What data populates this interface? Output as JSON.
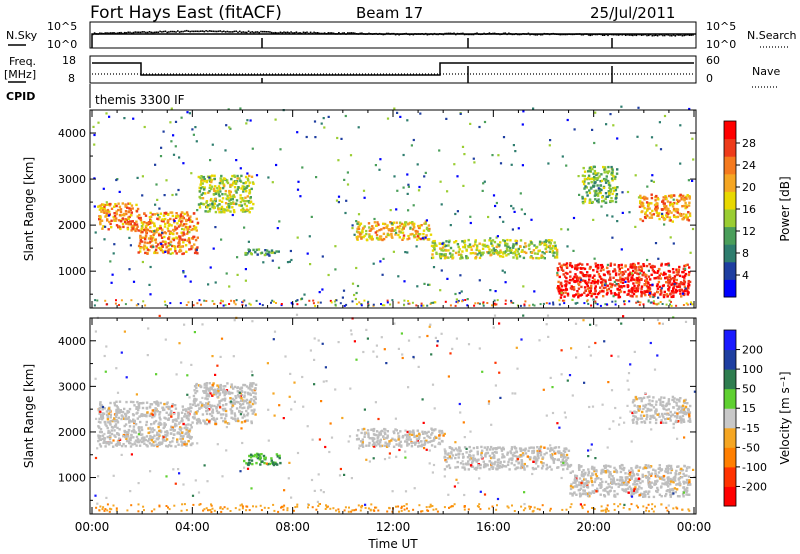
{
  "header": {
    "station": "Fort Hays East (fitACF)",
    "beam": "Beam 17",
    "date": "25/Jul/2011"
  },
  "noise_panel": {
    "left_label": "N.Sky",
    "right_label": "N.Search",
    "left_ticks": [
      "10^5",
      "10^0"
    ],
    "right_ticks": [
      "10^5",
      "10^0"
    ]
  },
  "freq_panel": {
    "left_label_1": "Freq.",
    "left_label_2": "[MHz]",
    "left_ticks": [
      "18",
      "8"
    ],
    "right_label": "Nave",
    "right_ticks": [
      "60",
      "0"
    ]
  },
  "cpid_panel": {
    "label": "CPID",
    "program": "themis 3300 IF"
  },
  "x_axis": {
    "label": "Time UT",
    "ticks": [
      "00:00",
      "04:00",
      "08:00",
      "12:00",
      "16:00",
      "20:00",
      "00:00"
    ]
  },
  "power_panel": {
    "ylabel": "Slant Range [km]",
    "yticks": [
      "4000",
      "3000",
      "2000",
      "1000"
    ],
    "colorbar_label": "Power [dB]",
    "colorbar_ticks": [
      "28",
      "24",
      "20",
      "16",
      "12",
      "8",
      "4"
    ]
  },
  "velocity_panel": {
    "ylabel": "Slant Range [km]",
    "yticks": [
      "4000",
      "3000",
      "2000",
      "1000"
    ],
    "colorbar_label": "Velocity [m s⁻¹]",
    "colorbar_ticks": [
      "200",
      "100",
      "50",
      "15",
      "-15",
      "-50",
      "-100",
      "-200"
    ]
  },
  "colors": {
    "power_scale": [
      "#0000ff",
      "#1e3ea0",
      "#2e7d6e",
      "#4a9e5a",
      "#9acd32",
      "#e8d800",
      "#f5a623",
      "#f57a1e",
      "#ee3b1a",
      "#ff0000"
    ],
    "velocity_scale": [
      "#1a1aff",
      "#1e3ea0",
      "#2e7d4f",
      "#5fd031",
      "#c8c8c8",
      "#f5a623",
      "#ff7f00",
      "#ff3300",
      "#ff0000"
    ],
    "ground_scatter": "#bebebe"
  },
  "chart_data": [
    {
      "type": "line",
      "title": "N.Sky / N.Search",
      "x": [
        "00:00",
        "04:00",
        "08:00",
        "12:00",
        "16:00",
        "20:00",
        "00:00"
      ],
      "ylim_log10": [
        0,
        5
      ],
      "series": [
        {
          "name": "N.Sky",
          "values_log10": [
            2.9,
            3.4,
            3.1,
            2.8,
            2.9,
            2.7,
            2.6
          ]
        }
      ]
    },
    {
      "type": "line",
      "title": "Freq. / Nave",
      "xlim_hours": [
        0,
        24
      ],
      "ylim_left": [
        8,
        18
      ],
      "ylim_right": [
        0,
        60
      ],
      "series": [
        {
          "name": "Freq.",
          "x_hours": [
            0,
            1.9,
            1.9,
            14.1,
            14.1,
            24
          ],
          "values": [
            14,
            14,
            10.3,
            10.3,
            14,
            14
          ]
        },
        {
          "name": "Nave",
          "x_hours": [
            0,
            24
          ],
          "values": [
            18,
            18
          ]
        }
      ]
    },
    {
      "type": "heatmap",
      "title": "Power [dB]",
      "xlim_hours": [
        0,
        24
      ],
      "ylim": [
        200,
        4500
      ],
      "colorbar": [
        4,
        8,
        12,
        16,
        20,
        24,
        28
      ],
      "regions": [
        {
          "t0": 0.2,
          "t1": 1.8,
          "r0": 1900,
          "r1": 2500,
          "value": 20
        },
        {
          "t0": 1.8,
          "t1": 4.2,
          "r0": 1400,
          "r1": 2300,
          "value": 20
        },
        {
          "t0": 4.2,
          "t1": 6.4,
          "r0": 2300,
          "r1": 3100,
          "value": 14
        },
        {
          "t0": 6.0,
          "t1": 7.4,
          "r0": 1350,
          "r1": 1500,
          "value": 10
        },
        {
          "t0": 10.5,
          "t1": 13.5,
          "r0": 1700,
          "r1": 2100,
          "value": 18
        },
        {
          "t0": 13.5,
          "t1": 18.5,
          "r0": 1300,
          "r1": 1700,
          "value": 14
        },
        {
          "t0": 18.5,
          "t1": 23.8,
          "r0": 450,
          "r1": 1200,
          "value": 26
        },
        {
          "t0": 19.5,
          "t1": 20.9,
          "r0": 2500,
          "r1": 3300,
          "value": 12
        },
        {
          "t0": 21.8,
          "t1": 23.8,
          "r0": 2100,
          "r1": 2700,
          "value": 20
        }
      ]
    },
    {
      "type": "heatmap",
      "title": "Velocity [m s⁻¹]",
      "xlim_hours": [
        0,
        24
      ],
      "ylim": [
        200,
        4500
      ],
      "colorbar": [
        200,
        100,
        50,
        15,
        -15,
        -50,
        -100,
        -200
      ],
      "regions": [
        {
          "t0": 0.2,
          "t1": 4.0,
          "r0": 1700,
          "r1": 2700,
          "value": 0
        },
        {
          "t0": 4.0,
          "t1": 6.5,
          "r0": 2200,
          "r1": 3100,
          "value": 0
        },
        {
          "t0": 6.0,
          "t1": 7.5,
          "r0": 1300,
          "r1": 1550,
          "value": 50
        },
        {
          "t0": 10.5,
          "t1": 14.0,
          "r0": 1700,
          "r1": 2100,
          "value": 0
        },
        {
          "t0": 14.0,
          "t1": 19.0,
          "r0": 1200,
          "r1": 1700,
          "value": 0
        },
        {
          "t0": 19.0,
          "t1": 23.8,
          "r0": 600,
          "r1": 1300,
          "value": 0
        },
        {
          "t0": 21.5,
          "t1": 23.8,
          "r0": 2200,
          "r1": 2800,
          "value": 0
        }
      ]
    }
  ]
}
